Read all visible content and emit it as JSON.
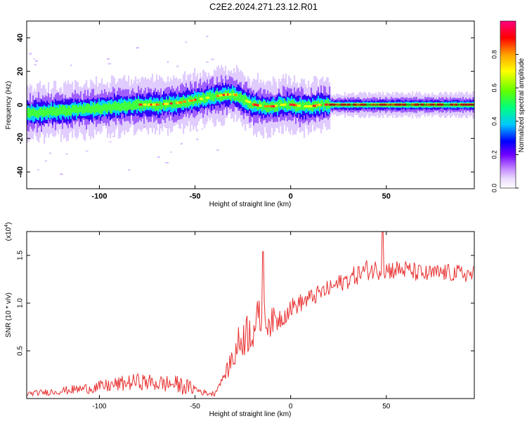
{
  "title": "C2E2.2024.271.23.12.R01",
  "chart_data": [
    {
      "type": "heatmap",
      "xlabel": "Height of straight line (km)",
      "ylabel": "Frequency (Hz)",
      "xlim": [
        -138,
        96
      ],
      "ylim": [
        -50,
        50
      ],
      "x_ticks": [
        -100,
        -50,
        0,
        50
      ],
      "x_tick_labels": [
        "-100",
        "-50",
        "0",
        "50"
      ],
      "y_ticks": [
        -40,
        -20,
        0,
        20,
        40
      ],
      "y_tick_labels": [
        "-40",
        "-20",
        "0",
        "20",
        "40"
      ],
      "colorbar": {
        "label": "Normalized spectral amplitude",
        "range": [
          0,
          1
        ],
        "ticks": [
          0.0,
          0.2,
          0.4,
          0.6,
          0.8
        ],
        "tick_labels": [
          "0.0",
          "0.2",
          "0.4",
          "0.6",
          "0.8"
        ],
        "colors": [
          "#ffffff",
          "#c8a0ff",
          "#8000ff",
          "#0000ff",
          "#00c8ff",
          "#00ff80",
          "#80ff00",
          "#ffff00",
          "#ffa000",
          "#ff0000",
          "#ff0080"
        ]
      },
      "ridge": {
        "x": [
          -138,
          -125,
          -110,
          -100,
          -90,
          -80,
          -70,
          -60,
          -55,
          -50,
          -45,
          -40,
          -35,
          -30,
          -25,
          -20,
          -15,
          -10,
          -5,
          0,
          5,
          10,
          15,
          20,
          30,
          40,
          50,
          60,
          70,
          80,
          96
        ],
        "y": [
          -5,
          -4,
          -3,
          -2,
          -1,
          0,
          0,
          1,
          2,
          3,
          4,
          5,
          6,
          6,
          3,
          0,
          -1,
          -1,
          0,
          0,
          -1,
          -1,
          0,
          0,
          0,
          0,
          0,
          0,
          0,
          0,
          0
        ]
      },
      "grid": false
    },
    {
      "type": "line",
      "xlabel": "Height of straight line (km)",
      "ylabel": "SNR (10 * v/v)",
      "y_multiplier": "(x10",
      "y_multiplier_exp": "4",
      "y_multiplier_close": ")",
      "xlim": [
        -138,
        96
      ],
      "ylim": [
        0,
        17500
      ],
      "x_ticks": [
        -100,
        -50,
        0,
        50
      ],
      "x_tick_labels": [
        "-100",
        "-50",
        "0",
        "50"
      ],
      "y_ticks": [
        5000,
        10000,
        15000
      ],
      "y_tick_labels": [
        "0.5",
        "1.0",
        "1.5"
      ],
      "line_color": "#e83030",
      "envelope": {
        "x": [
          -138,
          -120,
          -100,
          -90,
          -80,
          -70,
          -60,
          -50,
          -45,
          -40,
          -33,
          -30,
          -25,
          -20,
          -15,
          -10,
          -5,
          0,
          10,
          20,
          30,
          40,
          50,
          60,
          70,
          80,
          96
        ],
        "y": [
          500,
          800,
          1200,
          1500,
          1800,
          1600,
          1500,
          1000,
          600,
          500,
          3000,
          4500,
          6500,
          7500,
          8500,
          8000,
          8500,
          9500,
          10500,
          11500,
          12500,
          13500,
          13500,
          13500,
          13000,
          13200,
          13000
        ]
      },
      "noise": {
        "x": [
          -138,
          -110,
          -90,
          -70,
          -55,
          -45,
          -35,
          -30,
          -20,
          -10,
          0,
          20,
          40,
          60,
          96
        ],
        "amplitude": [
          250,
          500,
          800,
          900,
          900,
          300,
          300,
          1800,
          2600,
          1500,
          1000,
          900,
          1100,
          1000,
          900
        ]
      },
      "peaks": [
        {
          "x": -14.5,
          "y": 15400
        },
        {
          "x": 48,
          "y": 17500
        }
      ],
      "grid": false
    }
  ]
}
